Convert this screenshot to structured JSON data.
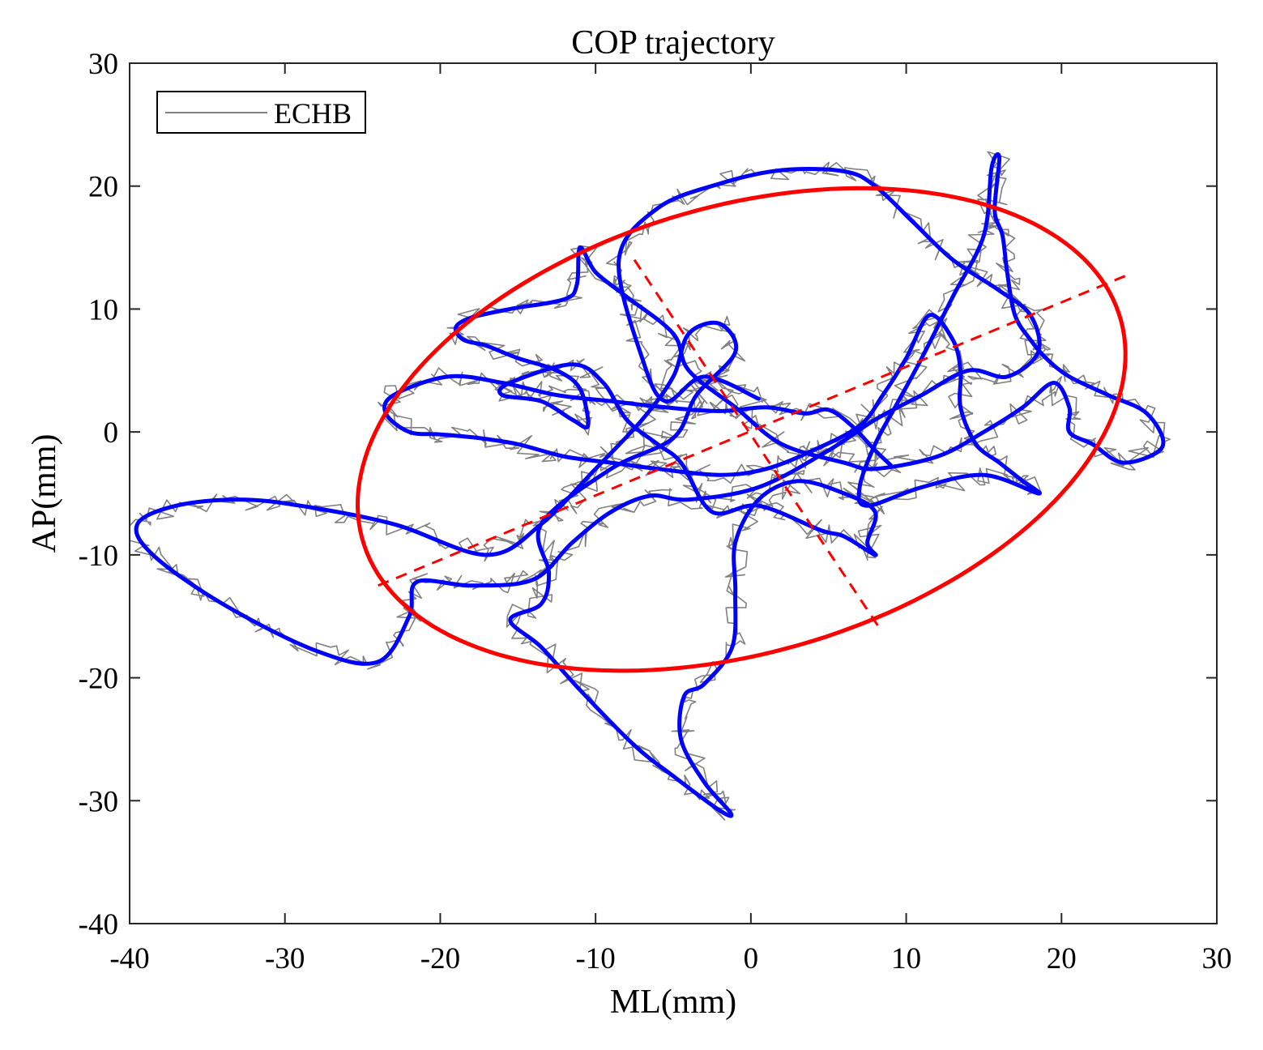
{
  "chart_data": {
    "type": "line",
    "title": "COP trajectory",
    "xlabel": "ML(mm)",
    "ylabel": "AP(mm)",
    "xlim": [
      -40,
      30
    ],
    "ylim": [
      -40,
      30
    ],
    "xticks": [
      -40,
      -30,
      -20,
      -10,
      0,
      10,
      20,
      30
    ],
    "yticks": [
      -40,
      -30,
      -20,
      -10,
      0,
      10,
      20,
      30
    ],
    "xtick_labels": [
      "-40",
      "-30",
      "-20",
      "-10",
      "0",
      "10",
      "20",
      "30"
    ],
    "ytick_labels": [
      "-40",
      "-30",
      "-20",
      "-10",
      "0",
      "10",
      "20",
      "30"
    ],
    "grid": false,
    "legend_position": "top-left",
    "series": [
      {
        "name": "ECHB",
        "color": "#808080",
        "kind": "raw-noisy-line"
      },
      {
        "color": "#0000ff",
        "kind": "smoothed-line",
        "points": [
          [
            0.5,
            2.7
          ],
          [
            -3,
            4.5
          ],
          [
            -5.5,
            2.5
          ],
          [
            -7,
            6
          ],
          [
            -8.5,
            14
          ],
          [
            -6,
            18.2
          ],
          [
            -2,
            20.2
          ],
          [
            2,
            21.3
          ],
          [
            6,
            21.2
          ],
          [
            8,
            20
          ],
          [
            10.5,
            17
          ],
          [
            13,
            14
          ],
          [
            16,
            11.5
          ],
          [
            18,
            9.5
          ],
          [
            18.5,
            6.5
          ],
          [
            16.5,
            4.5
          ],
          [
            14,
            5
          ],
          [
            11,
            3
          ],
          [
            8,
            1
          ],
          [
            5,
            -1.5
          ],
          [
            0.5,
            -4.5
          ],
          [
            -4,
            -5.5
          ],
          [
            -6.5,
            -5.2
          ],
          [
            -9,
            -6.5
          ],
          [
            -11.5,
            -9
          ],
          [
            -14,
            -12
          ],
          [
            -18,
            -12.5
          ],
          [
            -21.5,
            -12.2
          ],
          [
            -22,
            -15
          ],
          [
            -24,
            -18.7
          ],
          [
            -28,
            -17.8
          ],
          [
            -34,
            -14
          ],
          [
            -38.5,
            -10
          ],
          [
            -39.5,
            -7.5
          ],
          [
            -37,
            -6
          ],
          [
            -33,
            -5.5
          ],
          [
            -29,
            -6
          ],
          [
            -23,
            -7.5
          ],
          [
            -17,
            -10
          ],
          [
            -13.5,
            -7.5
          ],
          [
            -10,
            -3
          ],
          [
            -7,
            1
          ],
          [
            -5,
            4.5
          ],
          [
            -4,
            8
          ],
          [
            -2,
            8.8
          ],
          [
            -1,
            6.5
          ],
          [
            -3.5,
            3
          ],
          [
            -5,
            -0.5
          ],
          [
            -9,
            -3
          ],
          [
            -13.5,
            -7.5
          ],
          [
            -13,
            -11.5
          ],
          [
            -13.5,
            -14
          ],
          [
            -15.5,
            -15.3
          ],
          [
            -13.5,
            -17.5
          ],
          [
            -11,
            -21
          ],
          [
            -7.5,
            -25.5
          ],
          [
            -5,
            -28
          ],
          [
            -2,
            -30.8
          ],
          [
            -1.3,
            -31
          ],
          [
            -3,
            -28.5
          ],
          [
            -4.5,
            -25
          ],
          [
            -4.3,
            -21.5
          ],
          [
            -3,
            -20.5
          ],
          [
            -1.2,
            -17.5
          ],
          [
            -1,
            -13
          ],
          [
            -1,
            -9
          ],
          [
            0.5,
            -5.5
          ],
          [
            3,
            -4
          ],
          [
            6,
            -5
          ],
          [
            8,
            -6.5
          ],
          [
            7.5,
            -9
          ],
          [
            8,
            -10
          ],
          [
            6,
            -8.5
          ],
          [
            4.5,
            -8
          ],
          [
            0.5,
            -6
          ],
          [
            -2.5,
            -6.5
          ],
          [
            -4.5,
            -2.5
          ],
          [
            -6,
            -1
          ],
          [
            -8,
            1
          ],
          [
            -9.5,
            4
          ],
          [
            -11.5,
            5.5
          ],
          [
            -15.5,
            4
          ],
          [
            -16,
            3
          ],
          [
            -13.5,
            2.5
          ],
          [
            -11.5,
            1
          ],
          [
            -10.5,
            0.5
          ],
          [
            -11,
            3.5
          ],
          [
            -12.5,
            5
          ],
          [
            -15,
            6
          ],
          [
            -17,
            7
          ],
          [
            -18.5,
            7.5
          ],
          [
            -19,
            8.5
          ],
          [
            -18,
            9.3
          ],
          [
            -15.5,
            10
          ],
          [
            -12,
            10.8
          ],
          [
            -11.2,
            12
          ],
          [
            -11,
            15
          ],
          [
            -10,
            13
          ],
          [
            -8,
            11
          ],
          [
            -5,
            8
          ],
          [
            -4,
            5
          ],
          [
            -1,
            2
          ],
          [
            2,
            -1
          ],
          [
            6,
            -2.5
          ],
          [
            8,
            -3
          ],
          [
            12,
            -2
          ],
          [
            15,
            0
          ],
          [
            17.5,
            2
          ],
          [
            19.5,
            4
          ],
          [
            20.5,
            2
          ],
          [
            20.5,
            0
          ],
          [
            22,
            -1
          ],
          [
            24,
            -2.5
          ],
          [
            26.5,
            -1.2
          ],
          [
            25.5,
            1.5
          ],
          [
            23,
            3
          ],
          [
            20.5,
            4.5
          ],
          [
            19,
            6
          ],
          [
            18,
            7.5
          ],
          [
            17,
            9.5
          ],
          [
            16.5,
            13
          ],
          [
            16.2,
            16
          ],
          [
            15.7,
            18
          ],
          [
            16,
            22.3
          ],
          [
            15.5,
            21.5
          ],
          [
            15,
            16
          ],
          [
            13,
            11
          ],
          [
            11,
            6
          ],
          [
            9.5,
            2.5
          ],
          [
            8,
            -1
          ],
          [
            7,
            -4.5
          ],
          [
            7.5,
            -6
          ],
          [
            11,
            -4.5
          ],
          [
            15,
            -3.5
          ],
          [
            18.5,
            -5
          ],
          [
            17.5,
            -4
          ],
          [
            16,
            -2.5
          ],
          [
            14.5,
            -1
          ],
          [
            13.5,
            2
          ],
          [
            13.5,
            5
          ],
          [
            13,
            7.5
          ],
          [
            11.5,
            9.5
          ],
          [
            10,
            6
          ],
          [
            8.5,
            3
          ],
          [
            7,
            0.5
          ],
          [
            4,
            -1.5
          ],
          [
            1,
            -3
          ],
          [
            -2,
            -3.5
          ],
          [
            -6,
            -3
          ],
          [
            -9,
            -2.5
          ],
          [
            -12,
            -2
          ],
          [
            -15,
            -1
          ],
          [
            -17.5,
            -0.5
          ],
          [
            -20,
            -0.2
          ],
          [
            -22,
            0
          ],
          [
            -23.5,
            1.5
          ],
          [
            -23,
            3
          ],
          [
            -19.5,
            4.5
          ],
          [
            -16,
            4
          ],
          [
            -12.5,
            3
          ],
          [
            -9,
            2.5
          ],
          [
            -5.5,
            2
          ],
          [
            -2,
            1.7
          ],
          [
            1,
            2
          ],
          [
            3.5,
            1.5
          ],
          [
            5,
            1.8
          ],
          [
            6.5,
            0.5
          ],
          [
            8,
            -1.5
          ],
          [
            9,
            -2.7
          ]
        ]
      }
    ],
    "ellipse": {
      "color": "#ff0000",
      "center": [
        -0.6,
        0.2
      ],
      "semi_major": 26.2,
      "semi_minor": 17.6,
      "angle_deg": 26.6,
      "major_axis_endpoint_a": [
        -24.0,
        -12.5
      ],
      "major_axis_endpoint_b": [
        24.5,
        12.9
      ],
      "minor_axis_endpoint_a": [
        -7.5,
        14.0
      ],
      "minor_axis_endpoint_b": [
        8.2,
        -15.8
      ]
    }
  }
}
